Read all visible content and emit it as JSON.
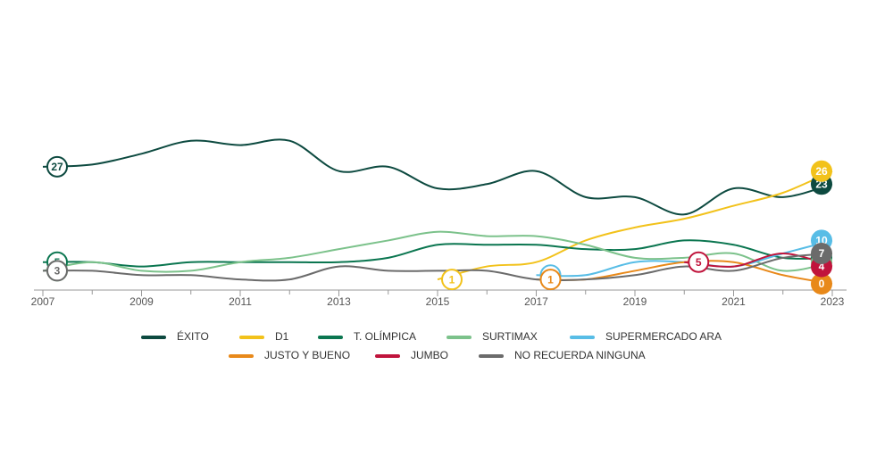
{
  "chart_data": {
    "type": "line",
    "x": [
      2007,
      2008,
      2009,
      2010,
      2011,
      2012,
      2013,
      2014,
      2015,
      2016,
      2017,
      2018,
      2019,
      2020,
      2021,
      2022,
      2023
    ],
    "xlim": [
      2007,
      2023
    ],
    "xticks": [
      2007,
      2009,
      2011,
      2013,
      2015,
      2017,
      2019,
      2021,
      2023
    ],
    "ylim": [
      0,
      35
    ],
    "series": [
      {
        "name": "ÉXITO",
        "color": "#0d4a40",
        "values": [
          27,
          27.5,
          30,
          33,
          32,
          33,
          26,
          27,
          22,
          23,
          26,
          20,
          20,
          16,
          22,
          20,
          23
        ]
      },
      {
        "name": "D1",
        "color": "#f2c21b",
        "values": [
          null,
          null,
          null,
          null,
          null,
          null,
          null,
          null,
          1,
          4,
          5,
          10,
          13,
          15,
          18,
          21,
          26
        ]
      },
      {
        "name": "T. OLÍMPICA",
        "color": "#0b7650",
        "values": [
          5,
          5,
          4,
          5,
          5,
          5,
          5,
          6,
          9,
          9,
          9,
          8,
          8,
          10,
          9,
          6,
          6
        ]
      },
      {
        "name": "SURTIMAX",
        "color": "#7cc28b",
        "values": [
          3,
          5,
          3,
          3,
          5,
          6,
          8,
          10,
          12,
          11,
          11,
          9,
          6,
          6,
          7,
          3,
          5
        ]
      },
      {
        "name": "SUPERMERCADO ARA",
        "color": "#58bde6",
        "values": [
          null,
          null,
          null,
          null,
          null,
          null,
          null,
          null,
          null,
          null,
          2,
          2,
          5,
          5,
          4,
          7,
          10
        ]
      },
      {
        "name": "JUSTO Y BUENO",
        "color": "#e8891a",
        "values": [
          null,
          null,
          null,
          null,
          null,
          null,
          null,
          null,
          null,
          null,
          1,
          1,
          3,
          5,
          5,
          2,
          0
        ]
      },
      {
        "name": "JUMBO",
        "color": "#c0143c",
        "values": [
          null,
          null,
          null,
          null,
          null,
          null,
          null,
          null,
          null,
          null,
          null,
          null,
          null,
          5,
          4,
          7,
          4
        ]
      },
      {
        "name": "NO RECUERDA NINGUNA",
        "color": "#6b6b6b",
        "values": [
          3,
          3,
          2,
          2,
          1,
          1,
          4,
          3,
          3,
          3,
          1,
          1,
          2,
          4,
          3,
          6,
          7
        ]
      }
    ]
  }
}
